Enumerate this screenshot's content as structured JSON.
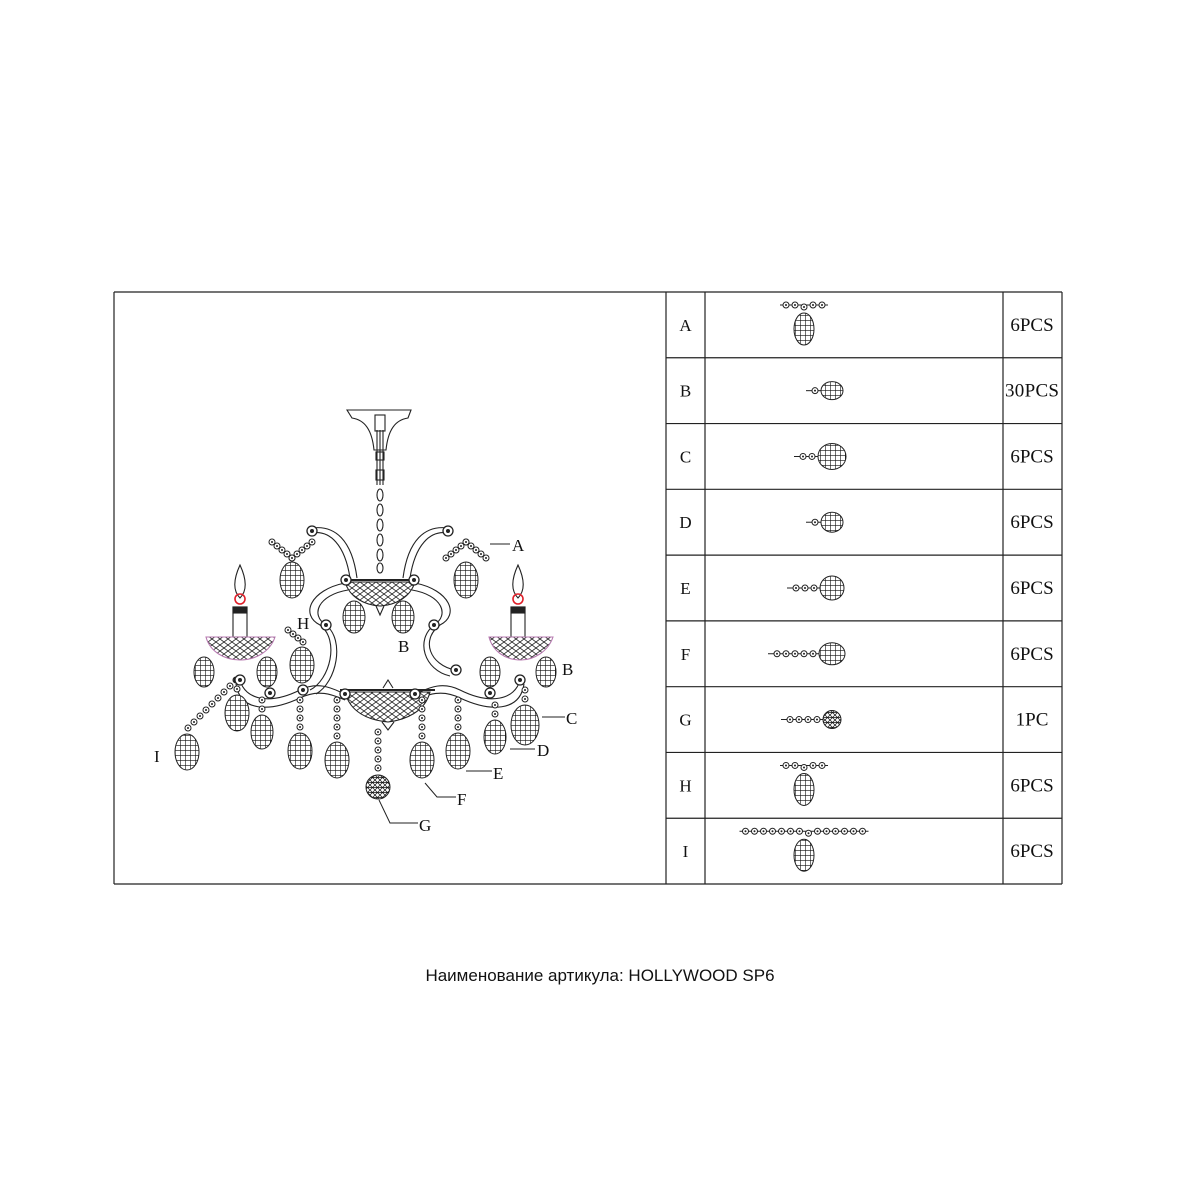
{
  "drawing": {
    "callouts": {
      "A": "A",
      "B1": "B",
      "B2": "B",
      "C": "C",
      "D": "D",
      "E": "E",
      "F": "F",
      "G": "G",
      "H": "H",
      "I": "I"
    },
    "bulb_color": "#e0202a",
    "bowl_tint": "#b77ab0"
  },
  "parts_table": {
    "rows": [
      {
        "letter": "A",
        "qty": "6PCS"
      },
      {
        "letter": "B",
        "qty": "30PCS"
      },
      {
        "letter": "C",
        "qty": "6PCS"
      },
      {
        "letter": "D",
        "qty": "6PCS"
      },
      {
        "letter": "E",
        "qty": "6PCS"
      },
      {
        "letter": "F",
        "qty": "6PCS"
      },
      {
        "letter": "G",
        "qty": "1PC"
      },
      {
        "letter": "H",
        "qty": "6PCS"
      },
      {
        "letter": "I",
        "qty": "6PCS"
      }
    ]
  },
  "caption": "Наименование артикула: HOLLYWOOD SP6"
}
